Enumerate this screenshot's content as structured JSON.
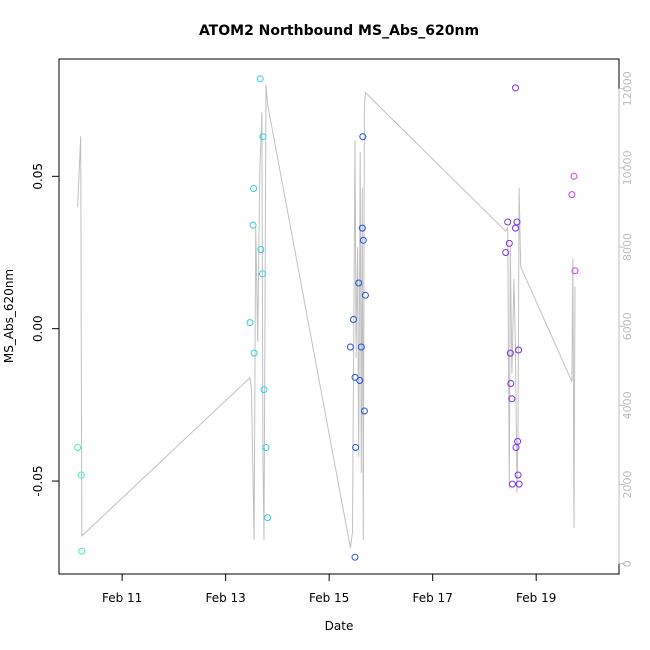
{
  "chart_data": {
    "type": "scatter",
    "title": "ATOM2 Northbound MS_Abs_620nm",
    "xlabel": "Date",
    "ylabel": "MS_Abs_620nm",
    "x_unit": "days in February",
    "xlim": [
      9.78,
      20.6
    ],
    "ylim": [
      -0.0805,
      0.0885
    ],
    "x_ticks": [
      11,
      13,
      15,
      17,
      19
    ],
    "x_tick_labels": [
      "Feb 11",
      "Feb 13",
      "Feb 15",
      "Feb 17",
      "Feb 19"
    ],
    "y_ticks": [
      -0.05,
      0.0,
      0.05
    ],
    "y_tick_labels": [
      "-0.05",
      "0.00",
      "0.05"
    ],
    "y2lim": [
      -260,
      12750
    ],
    "y2_ticks": [
      0,
      2000,
      4000,
      6000,
      8000,
      10000,
      12000
    ],
    "y2_tick_labels": [
      "0",
      "2000",
      "4000",
      "6000",
      "8000",
      "10000",
      "12000"
    ],
    "grid": false,
    "points": [
      {
        "x": 10.14,
        "y": -0.039,
        "color": "#40f0c0"
      },
      {
        "x": 10.21,
        "y": -0.048,
        "color": "#40f0c0"
      },
      {
        "x": 10.22,
        "y": -0.073,
        "color": "#40f0c0"
      },
      {
        "x": 13.47,
        "y": 0.002,
        "color": "#30d0e0"
      },
      {
        "x": 13.53,
        "y": 0.034,
        "color": "#30d0e0"
      },
      {
        "x": 13.54,
        "y": 0.046,
        "color": "#30d0e0"
      },
      {
        "x": 13.55,
        "y": -0.008,
        "color": "#30d0e0"
      },
      {
        "x": 13.67,
        "y": 0.082,
        "color": "#30d0e0"
      },
      {
        "x": 13.68,
        "y": 0.026,
        "color": "#30d0e0"
      },
      {
        "x": 13.71,
        "y": 0.018,
        "color": "#30d0e0"
      },
      {
        "x": 13.72,
        "y": 0.063,
        "color": "#30d0e0"
      },
      {
        "x": 13.74,
        "y": -0.02,
        "color": "#30d0e0"
      },
      {
        "x": 13.78,
        "y": -0.039,
        "color": "#30d0e0"
      },
      {
        "x": 13.81,
        "y": -0.062,
        "color": "#30d0e0"
      },
      {
        "x": 15.41,
        "y": -0.006,
        "color": "#1e4ee8"
      },
      {
        "x": 15.47,
        "y": 0.003,
        "color": "#1e4ee8"
      },
      {
        "x": 15.5,
        "y": -0.016,
        "color": "#1e4ee8"
      },
      {
        "x": 15.51,
        "y": -0.039,
        "color": "#1e4ee8"
      },
      {
        "x": 15.5,
        "y": -0.075,
        "color": "#1e4ee8"
      },
      {
        "x": 15.57,
        "y": 0.015,
        "color": "#1e4ee8"
      },
      {
        "x": 15.59,
        "y": -0.017,
        "color": "#1e4ee8"
      },
      {
        "x": 15.62,
        "y": -0.006,
        "color": "#1e4ee8"
      },
      {
        "x": 15.64,
        "y": 0.033,
        "color": "#1e4ee8"
      },
      {
        "x": 15.65,
        "y": 0.063,
        "color": "#1e4ee8"
      },
      {
        "x": 15.66,
        "y": 0.029,
        "color": "#1e4ee8"
      },
      {
        "x": 15.68,
        "y": -0.027,
        "color": "#1e4ee8"
      },
      {
        "x": 15.7,
        "y": 0.011,
        "color": "#1e4ee8"
      },
      {
        "x": 18.41,
        "y": 0.025,
        "color": "#7a2fe8"
      },
      {
        "x": 18.45,
        "y": 0.035,
        "color": "#7a2fe8"
      },
      {
        "x": 18.48,
        "y": 0.028,
        "color": "#7a2fe8"
      },
      {
        "x": 18.5,
        "y": -0.008,
        "color": "#7a2fe8"
      },
      {
        "x": 18.51,
        "y": -0.018,
        "color": "#7a2fe8"
      },
      {
        "x": 18.53,
        "y": -0.023,
        "color": "#7a2fe8"
      },
      {
        "x": 18.54,
        "y": -0.051,
        "color": "#7a2fe8"
      },
      {
        "x": 18.6,
        "y": 0.033,
        "color": "#7a2fe8"
      },
      {
        "x": 18.6,
        "y": 0.079,
        "color": "#7a2fe8"
      },
      {
        "x": 18.61,
        "y": -0.039,
        "color": "#7a2fe8"
      },
      {
        "x": 18.63,
        "y": 0.035,
        "color": "#7a2fe8"
      },
      {
        "x": 18.64,
        "y": -0.037,
        "color": "#7a2fe8"
      },
      {
        "x": 18.65,
        "y": -0.048,
        "color": "#7a2fe8"
      },
      {
        "x": 18.66,
        "y": -0.007,
        "color": "#7a2fe8"
      },
      {
        "x": 18.67,
        "y": -0.051,
        "color": "#7a2fe8"
      },
      {
        "x": 19.69,
        "y": 0.044,
        "color": "#c83ce8"
      },
      {
        "x": 19.73,
        "y": 0.05,
        "color": "#c83ce8"
      },
      {
        "x": 19.75,
        "y": 0.019,
        "color": "#c83ce8"
      }
    ],
    "secondary_line": {
      "name": "",
      "color": "#c0c0c0",
      "x": [
        10.14,
        10.2,
        10.22,
        13.47,
        13.5,
        13.55,
        13.58,
        13.6,
        13.62,
        13.66,
        13.7,
        13.72,
        13.74,
        13.78,
        13.81,
        15.41,
        15.45,
        15.5,
        15.52,
        15.55,
        15.57,
        15.6,
        15.62,
        15.64,
        15.66,
        15.68,
        15.7,
        18.41,
        18.45,
        18.48,
        18.5,
        18.53,
        18.57,
        18.6,
        18.63,
        18.65,
        18.67,
        18.7,
        19.69,
        19.71,
        19.73,
        19.75
      ],
      "y": [
        9000,
        10800,
        700,
        4700,
        4400,
        600,
        8500,
        7200,
        5600,
        9900,
        11400,
        2800,
        600,
        12100,
        11600,
        400,
        800,
        10700,
        5200,
        8000,
        2700,
        10400,
        2300,
        9500,
        600,
        11500,
        11900,
        8400,
        8500,
        1900,
        8000,
        4800,
        7200,
        5400,
        1800,
        3600,
        9500,
        7500,
        4600,
        7700,
        900,
        7000
      ]
    }
  }
}
